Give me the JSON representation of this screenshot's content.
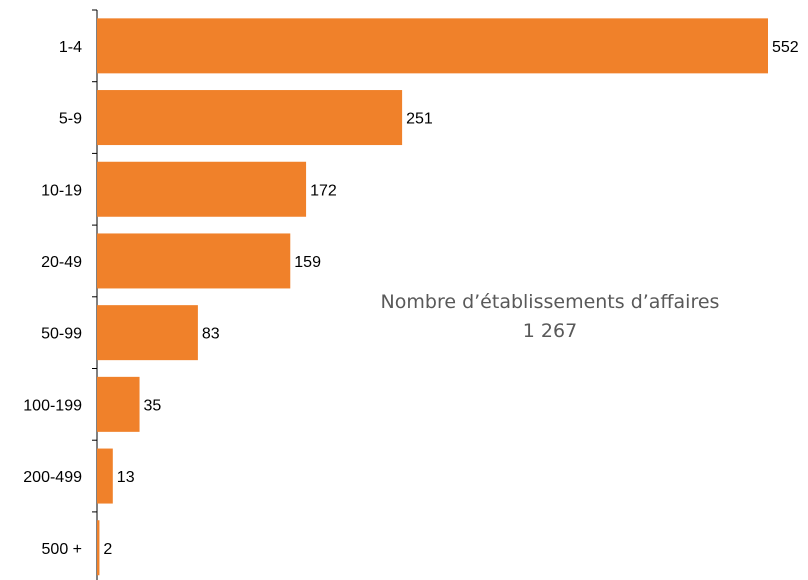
{
  "chart_data": {
    "type": "bar",
    "orientation": "horizontal",
    "categories": [
      "1-4",
      "5-9",
      "10-19",
      "20-49",
      "50-99",
      "100-199",
      "200-499",
      "500 +"
    ],
    "values": [
      552,
      251,
      172,
      159,
      83,
      35,
      13,
      2
    ],
    "xlim": [
      0,
      552
    ],
    "grid": false,
    "bar_color": "#F0812A",
    "annotation": {
      "line1": "Nombre d’établissements d’affaires",
      "line2": "1 267"
    }
  }
}
